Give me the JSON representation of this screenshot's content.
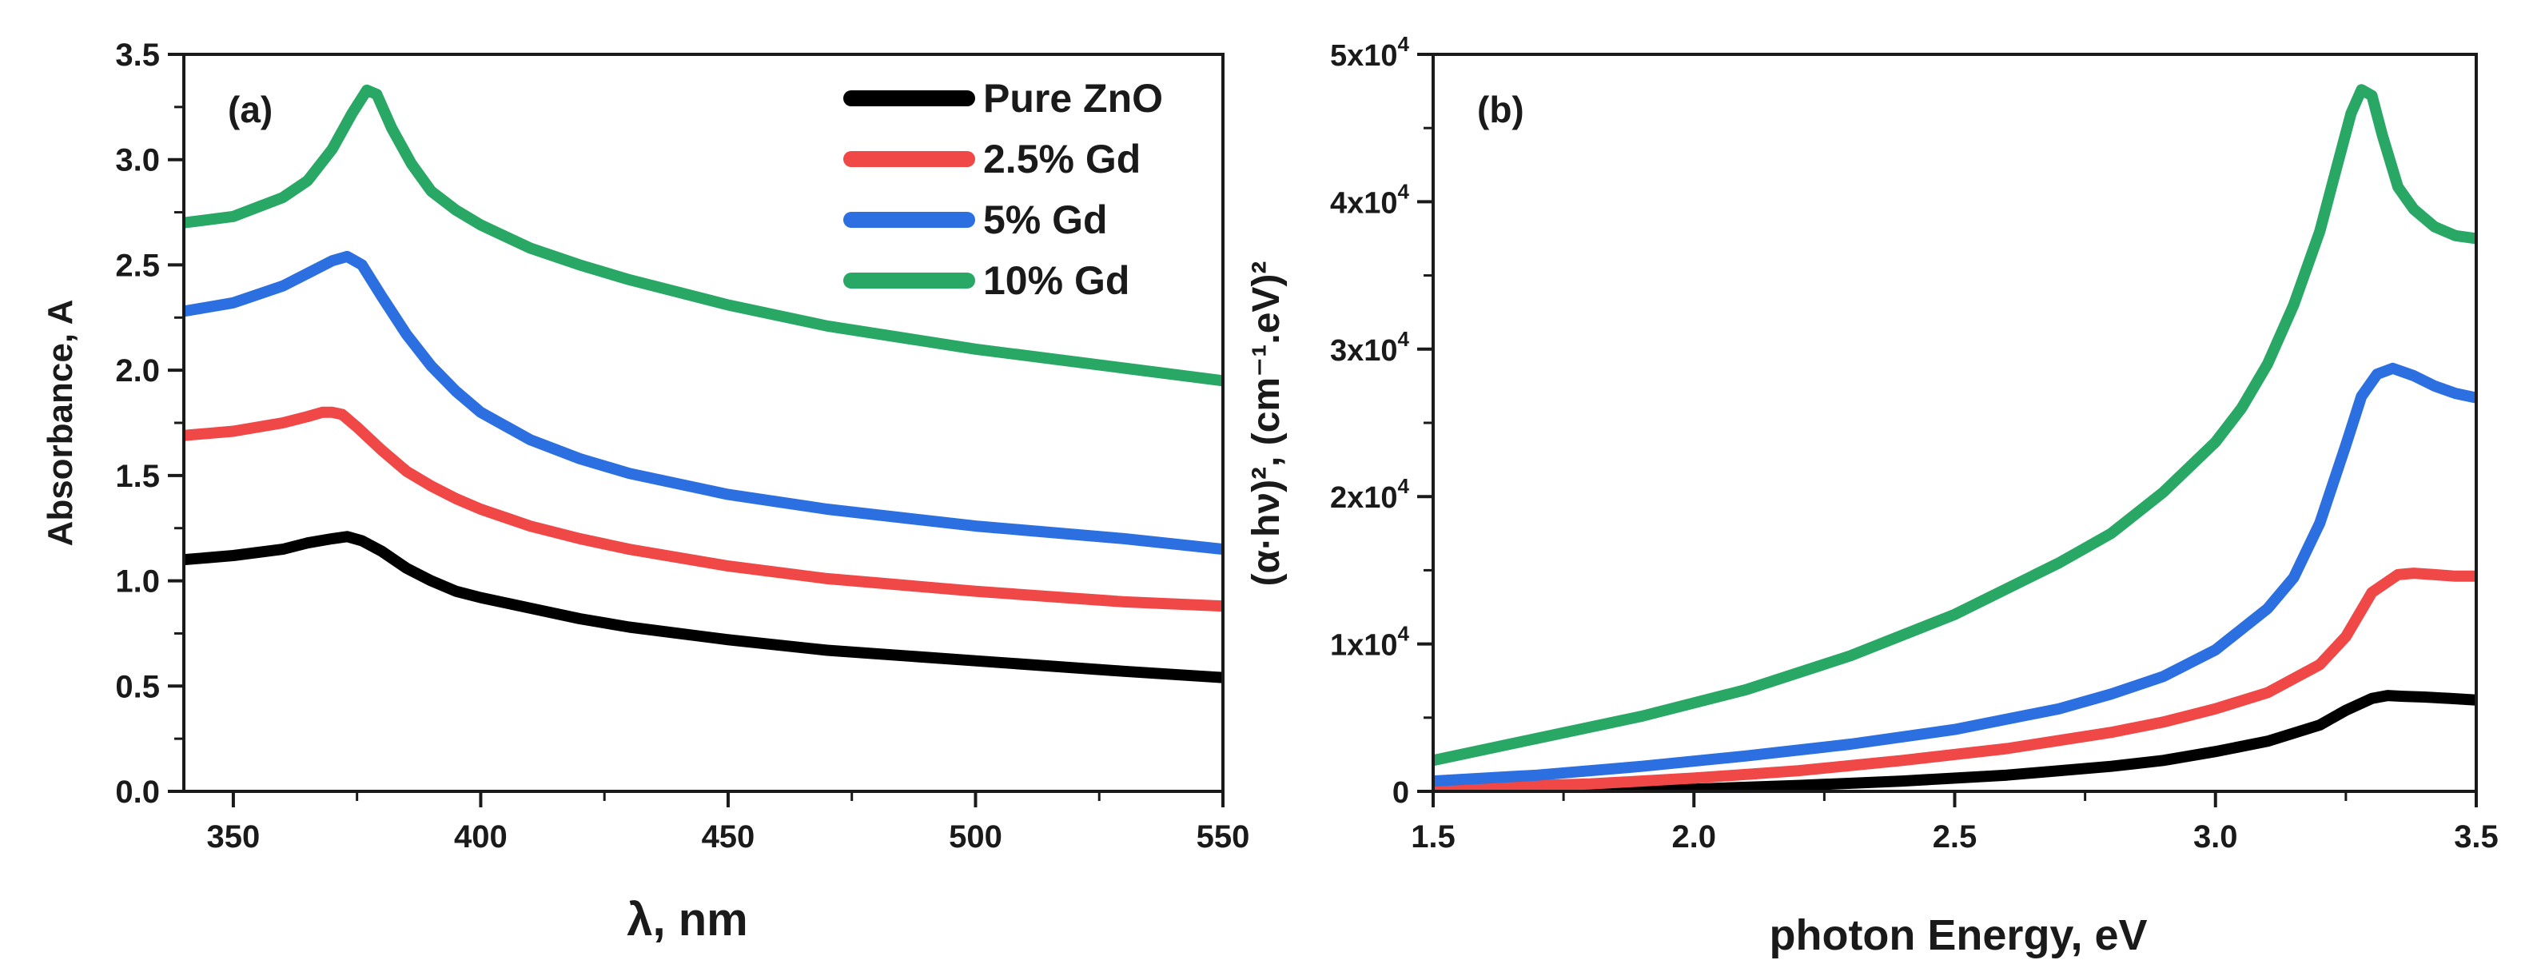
{
  "chart_data": [
    {
      "type": "line",
      "panel_label": "(a)",
      "xlabel": "λ, nm",
      "ylabel": "Absorbance, A",
      "xlim": [
        340,
        550
      ],
      "ylim": [
        0,
        3.5
      ],
      "xticks": [
        "350",
        "400",
        "450",
        "500",
        "550"
      ],
      "yticks": [
        "0.0",
        "0.5",
        "1.0",
        "1.5",
        "2.0",
        "2.5",
        "3.0",
        "3.5"
      ],
      "legend": {
        "position": "top-right",
        "entries": [
          "Pure ZnO",
          "2.5% Gd",
          "5% Gd",
          "10% Gd"
        ]
      },
      "series": [
        {
          "name": "Pure ZnO",
          "color": "#000000",
          "x": [
            340,
            350,
            360,
            365,
            370,
            373,
            376,
            380,
            385,
            390,
            395,
            400,
            410,
            420,
            430,
            450,
            470,
            500,
            530,
            550
          ],
          "y": [
            1.1,
            1.12,
            1.15,
            1.18,
            1.2,
            1.21,
            1.19,
            1.14,
            1.06,
            1.0,
            0.95,
            0.92,
            0.87,
            0.82,
            0.78,
            0.72,
            0.67,
            0.62,
            0.57,
            0.54
          ]
        },
        {
          "name": "2.5% Gd",
          "color": "#f04747",
          "x": [
            340,
            350,
            360,
            365,
            368,
            370,
            372,
            375,
            380,
            385,
            390,
            395,
            400,
            410,
            420,
            430,
            450,
            470,
            500,
            530,
            550
          ],
          "y": [
            1.69,
            1.71,
            1.75,
            1.78,
            1.8,
            1.8,
            1.79,
            1.73,
            1.62,
            1.52,
            1.45,
            1.39,
            1.34,
            1.26,
            1.2,
            1.15,
            1.07,
            1.01,
            0.95,
            0.9,
            0.88
          ]
        },
        {
          "name": "5% Gd",
          "color": "#2c6fe0",
          "x": [
            340,
            350,
            360,
            365,
            370,
            373,
            376,
            380,
            385,
            390,
            395,
            400,
            410,
            420,
            430,
            450,
            470,
            500,
            530,
            550
          ],
          "y": [
            2.28,
            2.32,
            2.4,
            2.46,
            2.52,
            2.54,
            2.5,
            2.35,
            2.17,
            2.02,
            1.9,
            1.8,
            1.67,
            1.58,
            1.51,
            1.41,
            1.34,
            1.26,
            1.2,
            1.15
          ]
        },
        {
          "name": "10% Gd",
          "color": "#29a865",
          "x": [
            340,
            350,
            360,
            365,
            370,
            374,
            377,
            379,
            382,
            386,
            390,
            395,
            400,
            410,
            420,
            430,
            450,
            470,
            500,
            530,
            550
          ],
          "y": [
            2.7,
            2.73,
            2.82,
            2.9,
            3.05,
            3.22,
            3.33,
            3.31,
            3.15,
            2.98,
            2.85,
            2.76,
            2.69,
            2.58,
            2.5,
            2.43,
            2.31,
            2.21,
            2.1,
            2.01,
            1.95
          ]
        }
      ]
    },
    {
      "type": "line",
      "panel_label": "(b)",
      "xlabel": "photon Energy, eV",
      "ylabel": "(α·hν)², (cm⁻¹.eV)²",
      "xlim": [
        1.5,
        3.5
      ],
      "ylim": [
        0,
        50000
      ],
      "xticks": [
        "1.5",
        "2.0",
        "2.5",
        "3.0",
        "3.5"
      ],
      "yticks": [
        "0",
        "1x10⁴",
        "2x10⁴",
        "3x10⁴",
        "4x10⁴",
        "5x10⁴"
      ],
      "series": [
        {
          "name": "Pure ZnO",
          "color": "#000000",
          "x": [
            1.5,
            1.8,
            2.0,
            2.2,
            2.4,
            2.6,
            2.8,
            2.9,
            3.0,
            3.1,
            3.2,
            3.25,
            3.3,
            3.33,
            3.36,
            3.4,
            3.45,
            3.5
          ],
          "y": [
            0,
            50,
            150,
            400,
            700,
            1100,
            1700,
            2100,
            2700,
            3400,
            4500,
            5500,
            6300,
            6500,
            6450,
            6400,
            6300,
            6200
          ]
        },
        {
          "name": "2.5% Gd",
          "color": "#f04747",
          "x": [
            1.5,
            1.8,
            2.0,
            2.2,
            2.4,
            2.6,
            2.8,
            2.9,
            3.0,
            3.1,
            3.2,
            3.25,
            3.3,
            3.35,
            3.38,
            3.42,
            3.46,
            3.5
          ],
          "y": [
            200,
            500,
            900,
            1400,
            2100,
            2900,
            4000,
            4700,
            5600,
            6700,
            8600,
            10500,
            13500,
            14700,
            14800,
            14700,
            14600,
            14600
          ]
        },
        {
          "name": "5% Gd",
          "color": "#2c6fe0",
          "x": [
            1.5,
            1.7,
            1.9,
            2.1,
            2.3,
            2.5,
            2.7,
            2.8,
            2.9,
            3.0,
            3.1,
            3.15,
            3.2,
            3.25,
            3.28,
            3.31,
            3.34,
            3.38,
            3.42,
            3.46,
            3.5
          ],
          "y": [
            700,
            1100,
            1700,
            2400,
            3200,
            4200,
            5600,
            6600,
            7800,
            9600,
            12400,
            14500,
            18200,
            23500,
            26800,
            28300,
            28700,
            28200,
            27500,
            27000,
            26700
          ]
        },
        {
          "name": "10% Gd",
          "color": "#29a865",
          "x": [
            1.5,
            1.7,
            1.9,
            2.1,
            2.3,
            2.5,
            2.7,
            2.8,
            2.9,
            3.0,
            3.05,
            3.1,
            3.15,
            3.2,
            3.23,
            3.26,
            3.28,
            3.3,
            3.32,
            3.35,
            3.38,
            3.42,
            3.46,
            3.5
          ],
          "y": [
            2100,
            3600,
            5100,
            6900,
            9200,
            12000,
            15500,
            17500,
            20300,
            23700,
            26000,
            29000,
            33000,
            38000,
            42000,
            46000,
            47600,
            47200,
            44500,
            41000,
            39500,
            38300,
            37700,
            37500
          ]
        }
      ]
    }
  ]
}
